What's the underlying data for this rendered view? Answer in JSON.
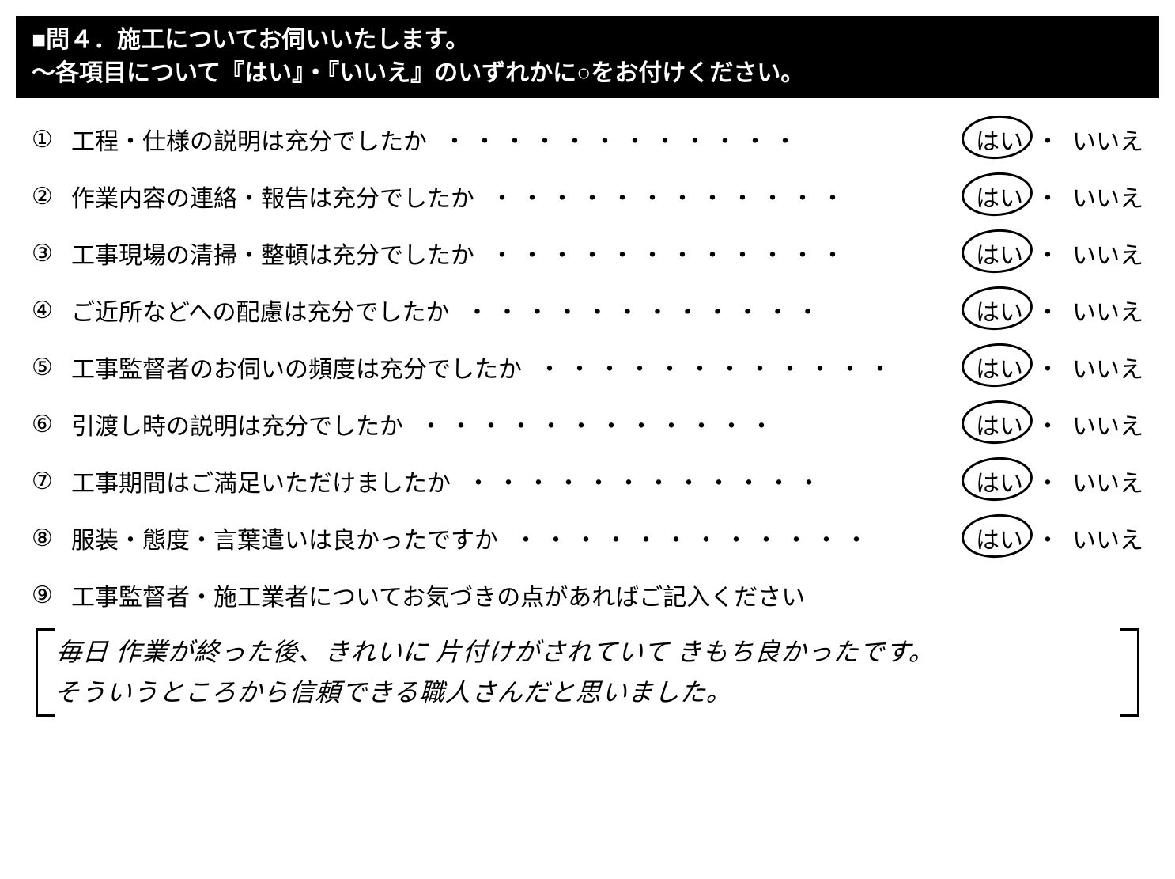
{
  "header": {
    "line1": "■問４．施工についてお伺いいたします。",
    "line2": "～各項目について『はい』・『いいえ』のいずれかに○をお付けください。"
  },
  "questions": [
    {
      "num": "①",
      "text": "工程・仕様の説明は充分でしたか",
      "yes": "はい",
      "no": "いいえ",
      "selected": "yes"
    },
    {
      "num": "②",
      "text": "作業内容の連絡・報告は充分でしたか",
      "yes": "はい",
      "no": "いいえ",
      "selected": "yes"
    },
    {
      "num": "③",
      "text": "工事現場の清掃・整頓は充分でしたか",
      "yes": "はい",
      "no": "いいえ",
      "selected": "yes"
    },
    {
      "num": "④",
      "text": "ご近所などへの配慮は充分でしたか",
      "yes": "はい",
      "no": "いいえ",
      "selected": "yes"
    },
    {
      "num": "⑤",
      "text": "工事監督者のお伺いの頻度は充分でしたか",
      "yes": "はい",
      "no": "いいえ",
      "selected": "yes"
    },
    {
      "num": "⑥",
      "text": "引渡し時の説明は充分でしたか",
      "yes": "はい",
      "no": "いいえ",
      "selected": "yes"
    },
    {
      "num": "⑦",
      "text": "工事期間はご満足いただけましたか",
      "yes": "はい",
      "no": "いいえ",
      "selected": "yes"
    },
    {
      "num": "⑧",
      "text": "服装・態度・言葉遣いは良かったですか",
      "yes": "はい",
      "no": "いいえ",
      "selected": "yes"
    }
  ],
  "question9": {
    "num": "⑨",
    "text": "工事監督者・施工業者についてお気づきの点があればご記入ください"
  },
  "handwritten": {
    "line1": "毎日 作業が終った後、きれいに 片付けがされていて きもち良かったです。",
    "line2": "そういうところから信頼できる職人さんだと思いました。"
  },
  "dots": "・・・・・・・・・・・・",
  "sep": "・",
  "colors": {
    "bg_header": "#000000",
    "fg_header": "#ffffff",
    "fg_body": "#000000",
    "circle": "#000000"
  }
}
